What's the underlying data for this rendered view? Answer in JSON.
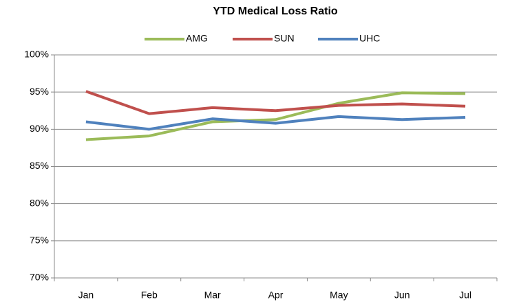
{
  "chart_data": {
    "type": "line",
    "title": "YTD Medical Loss Ratio",
    "categories": [
      "Jan",
      "Feb",
      "Mar",
      "Apr",
      "May",
      "Jun",
      "Jul"
    ],
    "series": [
      {
        "name": "AMG",
        "color": "#9bbb59",
        "values": [
          88.6,
          89.1,
          91.0,
          91.3,
          93.5,
          94.9,
          94.8
        ]
      },
      {
        "name": "SUN",
        "color": "#c0504d",
        "values": [
          95.1,
          92.1,
          92.9,
          92.5,
          93.2,
          93.4,
          93.1
        ]
      },
      {
        "name": "UHC",
        "color": "#4f81bd",
        "values": [
          91.0,
          90.0,
          91.4,
          90.8,
          91.7,
          91.3,
          91.6
        ]
      }
    ],
    "ylim": [
      70,
      100
    ],
    "yticks": [
      {
        "value": 70,
        "label": "70%"
      },
      {
        "value": 75,
        "label": "75%"
      },
      {
        "value": 80,
        "label": "80%"
      },
      {
        "value": 85,
        "label": "85%"
      },
      {
        "value": 90,
        "label": "90%"
      },
      {
        "value": 95,
        "label": "95%"
      },
      {
        "value": 100,
        "label": "100%"
      }
    ],
    "grid": true,
    "legend": "top"
  }
}
